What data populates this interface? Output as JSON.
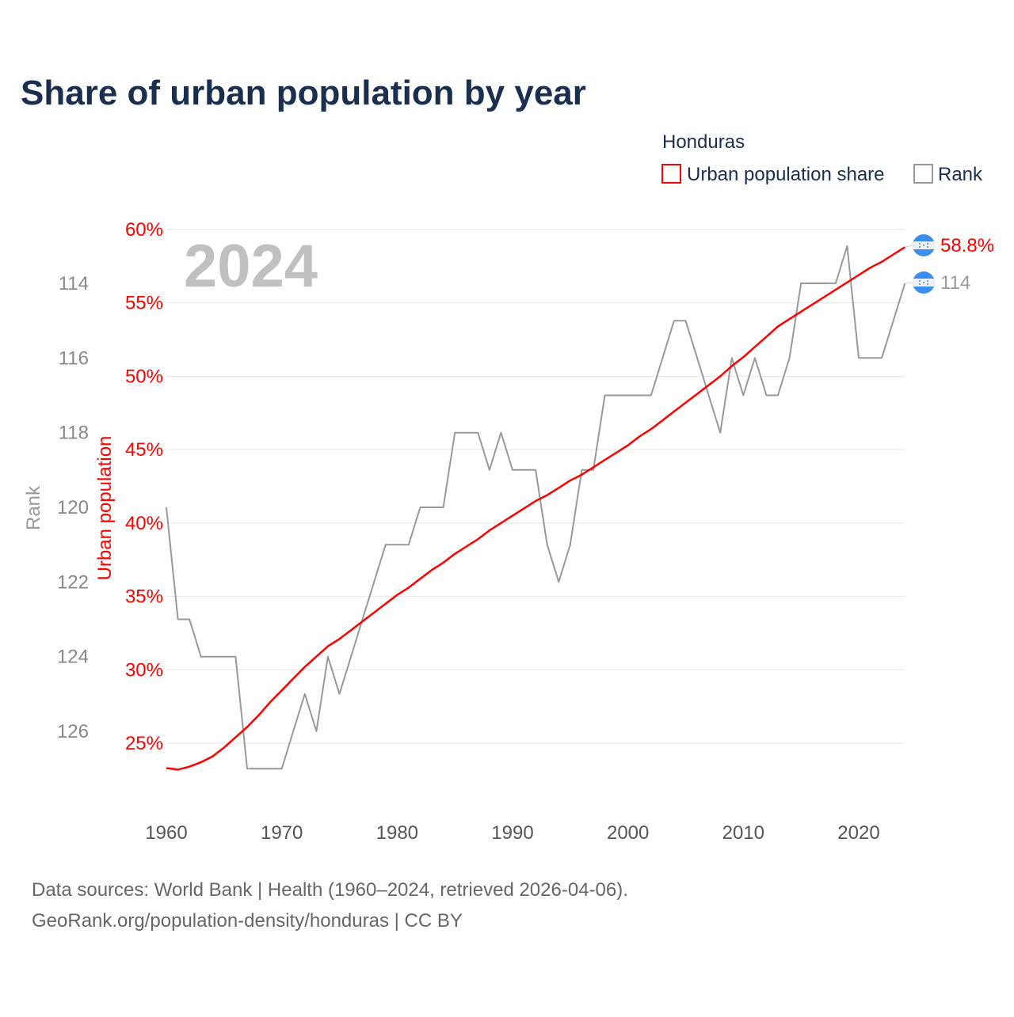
{
  "chart_data": {
    "type": "line",
    "title": "Share of urban population by year",
    "legend_title": "Honduras",
    "legend_position": "top-right",
    "watermark_year": "2024",
    "xlabel": "",
    "x_ticks": [
      1960,
      1970,
      1980,
      1990,
      2000,
      2010,
      2020
    ],
    "xlim": [
      1960,
      2024
    ],
    "y_left": {
      "label": "Urban population",
      "ylim": [
        25,
        60
      ],
      "ticks": [
        25,
        30,
        35,
        40,
        45,
        50,
        55,
        60
      ],
      "tick_labels": [
        "25%",
        "30%",
        "35%",
        "40%",
        "45%",
        "50%",
        "55%",
        "60%"
      ]
    },
    "y_rank": {
      "label": "Rank",
      "ticks": [
        114,
        116,
        118,
        120,
        122,
        124,
        126
      ],
      "tick_labels": [
        "114",
        "116",
        "118",
        "120",
        "122",
        "124",
        "126"
      ],
      "inverted": true
    },
    "x": [
      1960,
      1961,
      1962,
      1963,
      1964,
      1965,
      1966,
      1967,
      1968,
      1969,
      1970,
      1971,
      1972,
      1973,
      1974,
      1975,
      1976,
      1977,
      1978,
      1979,
      1980,
      1981,
      1982,
      1983,
      1984,
      1985,
      1986,
      1987,
      1988,
      1989,
      1990,
      1991,
      1992,
      1993,
      1994,
      1995,
      1996,
      1997,
      1998,
      1999,
      2000,
      2001,
      2002,
      2003,
      2004,
      2005,
      2006,
      2007,
      2008,
      2009,
      2010,
      2011,
      2012,
      2013,
      2014,
      2015,
      2016,
      2017,
      2018,
      2019,
      2020,
      2021,
      2022,
      2023,
      2024
    ],
    "series": [
      {
        "name": "Urban population share",
        "color": "#ff0000",
        "end_label": "58.8%",
        "values": [
          23.3,
          23.2,
          23.4,
          23.7,
          24.1,
          24.7,
          25.4,
          26.1,
          26.9,
          27.8,
          28.6,
          29.4,
          30.2,
          30.9,
          31.6,
          32.1,
          32.7,
          33.3,
          33.9,
          34.5,
          35.1,
          35.6,
          36.2,
          36.8,
          37.3,
          37.9,
          38.4,
          38.9,
          39.5,
          40.0,
          40.5,
          41.0,
          41.5,
          41.9,
          42.4,
          42.9,
          43.3,
          43.8,
          44.3,
          44.8,
          45.3,
          45.9,
          46.4,
          47.0,
          47.6,
          48.2,
          48.8,
          49.4,
          50.0,
          50.7,
          51.3,
          52.0,
          52.7,
          53.4,
          53.9,
          54.4,
          54.9,
          55.4,
          55.9,
          56.4,
          56.9,
          57.4,
          57.8,
          58.3,
          58.8
        ]
      },
      {
        "name": "Rank",
        "color": "#999999",
        "end_label": "114",
        "values": [
          120,
          123,
          123,
          124,
          124,
          124,
          124,
          127,
          127,
          127,
          127,
          126,
          125,
          126,
          124,
          125,
          124,
          123,
          122,
          121,
          121,
          121,
          120,
          120,
          120,
          118,
          118,
          118,
          119,
          118,
          119,
          119,
          119,
          121,
          122,
          121,
          119,
          119,
          117,
          117,
          117,
          117,
          117,
          116,
          115,
          115,
          116,
          117,
          118,
          116,
          117,
          116,
          117,
          117,
          116,
          114,
          114,
          114,
          114,
          113,
          116,
          116,
          116,
          115,
          114
        ]
      }
    ],
    "source_lines": [
      "Data sources: World Bank | Health (1960–2024, retrieved 2026-04-06).",
      "GeoRank.org/population-density/honduras | CC BY"
    ]
  }
}
